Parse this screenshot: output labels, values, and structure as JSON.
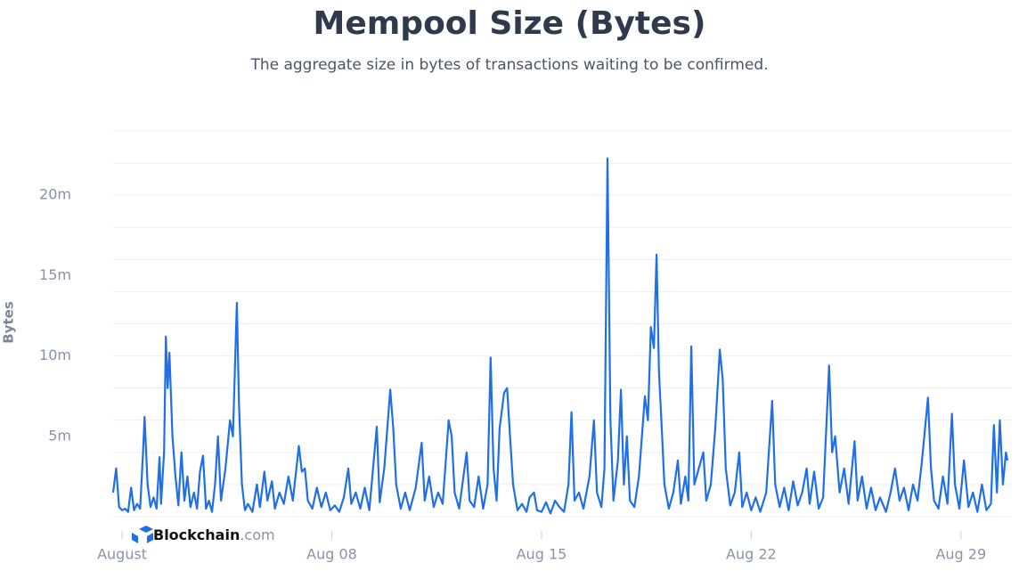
{
  "chart_data": {
    "type": "line",
    "title": "Mempool Size (Bytes)",
    "subtitle": "The aggregate size in bytes of transactions waiting to be confirmed.",
    "y_label": "Bytes",
    "watermark": {
      "name": "Blockchain",
      "suffix": ".com"
    },
    "color": "#1f6fe8",
    "grid": true,
    "xlim": [
      0.7,
      30.7
    ],
    "xticks": [
      {
        "value": 1,
        "label": "August"
      },
      {
        "value": 8,
        "label": "Aug 08"
      },
      {
        "value": 15,
        "label": "Aug 15"
      },
      {
        "value": 22,
        "label": "Aug 22"
      },
      {
        "value": 29,
        "label": "Aug 29"
      }
    ],
    "ylim": [
      0,
      24000000
    ],
    "yticks": [
      {
        "value": 5000000,
        "label": "5m"
      },
      {
        "value": 10000000,
        "label": "10m"
      },
      {
        "value": 15000000,
        "label": "15m"
      },
      {
        "value": 20000000,
        "label": "20m"
      }
    ],
    "ygrid": [
      0,
      2000000,
      4000000,
      6000000,
      8000000,
      10000000,
      12000000,
      14000000,
      16000000,
      18000000,
      20000000,
      22000000,
      24000000
    ],
    "x": [
      0.7,
      0.8,
      0.9,
      1.0,
      1.1,
      1.2,
      1.3,
      1.4,
      1.5,
      1.6,
      1.7,
      1.75,
      1.85,
      1.95,
      2.05,
      2.15,
      2.25,
      2.3,
      2.4,
      2.46,
      2.52,
      2.58,
      2.68,
      2.78,
      2.88,
      2.98,
      3.08,
      3.18,
      3.28,
      3.4,
      3.5,
      3.6,
      3.7,
      3.8,
      3.9,
      4.0,
      4.1,
      4.2,
      4.3,
      4.45,
      4.6,
      4.7,
      4.83,
      4.9,
      5.0,
      5.1,
      5.2,
      5.35,
      5.5,
      5.6,
      5.75,
      5.85,
      6.0,
      6.1,
      6.25,
      6.4,
      6.55,
      6.7,
      6.9,
      7.0,
      7.1,
      7.2,
      7.35,
      7.5,
      7.65,
      7.8,
      7.95,
      8.1,
      8.25,
      8.4,
      8.55,
      8.65,
      8.8,
      8.95,
      9.1,
      9.25,
      9.5,
      9.6,
      9.75,
      9.95,
      10.05,
      10.15,
      10.3,
      10.45,
      10.6,
      10.8,
      11.0,
      11.1,
      11.25,
      11.4,
      11.55,
      11.7,
      11.9,
      12.0,
      12.1,
      12.25,
      12.5,
      12.6,
      12.75,
      12.9,
      13.05,
      13.2,
      13.3,
      13.4,
      13.5,
      13.6,
      13.75,
      13.85,
      13.95,
      14.05,
      14.2,
      14.35,
      14.5,
      14.6,
      14.75,
      14.85,
      15.0,
      15.15,
      15.3,
      15.45,
      15.6,
      15.75,
      15.9,
      16.0,
      16.1,
      16.25,
      16.4,
      16.6,
      16.75,
      16.85,
      17.0,
      17.1,
      17.2,
      17.3,
      17.4,
      17.55,
      17.65,
      17.75,
      17.85,
      17.95,
      18.1,
      18.25,
      18.45,
      18.55,
      18.65,
      18.75,
      18.84,
      18.92,
      19.0,
      19.1,
      19.25,
      19.4,
      19.55,
      19.65,
      19.8,
      19.9,
      20.0,
      20.1,
      20.25,
      20.4,
      20.5,
      20.65,
      20.8,
      20.95,
      21.05,
      21.15,
      21.3,
      21.45,
      21.6,
      21.7,
      21.85,
      22.0,
      22.15,
      22.3,
      22.5,
      22.7,
      22.8,
      22.95,
      23.1,
      23.25,
      23.4,
      23.55,
      23.7,
      23.85,
      23.95,
      24.1,
      24.25,
      24.4,
      24.6,
      24.7,
      24.8,
      24.95,
      25.1,
      25.25,
      25.45,
      25.55,
      25.7,
      25.85,
      26.0,
      26.15,
      26.3,
      26.5,
      26.65,
      26.8,
      26.95,
      27.1,
      27.25,
      27.4,
      27.55,
      27.7,
      27.9,
      28.0,
      28.1,
      28.25,
      28.4,
      28.55,
      28.7,
      28.8,
      28.95,
      29.1,
      29.25,
      29.4,
      29.55,
      29.7,
      29.85,
      30.0,
      30.1,
      30.2,
      30.3,
      30.4,
      30.5,
      30.55
    ],
    "values": [
      1500000.0,
      3000000.0,
      600000.0,
      400000.0,
      500000.0,
      300000.0,
      1800000.0,
      400000.0,
      800000.0,
      500000.0,
      4000000.0,
      6200000.0,
      2000000.0,
      600000.0,
      1200000.0,
      500000.0,
      3700000.0,
      800000.0,
      4000000.0,
      11200000.0,
      8000000.0,
      10200000.0,
      5000000.0,
      2500000.0,
      700000.0,
      4000000.0,
      1000000.0,
      2500000.0,
      600000.0,
      1500000.0,
      500000.0,
      2800000.0,
      3800000.0,
      500000.0,
      1000000.0,
      300000.0,
      2000000.0,
      5000000.0,
      1000000.0,
      3000000.0,
      6000000.0,
      5000000.0,
      13300000.0,
      7000000.0,
      2000000.0,
      400000.0,
      800000.0,
      300000.0,
      2000000.0,
      600000.0,
      2800000.0,
      1000000.0,
      2200000.0,
      500000.0,
      1500000.0,
      800000.0,
      2500000.0,
      1000000.0,
      4400000.0,
      2800000.0,
      3000000.0,
      1000000.0,
      500000.0,
      1800000.0,
      600000.0,
      1500000.0,
      400000.0,
      700000.0,
      300000.0,
      1200000.0,
      3000000.0,
      800000.0,
      1500000.0,
      500000.0,
      1800000.0,
      400000.0,
      5600000.0,
      900000.0,
      3000000.0,
      7900000.0,
      5500000.0,
      2000000.0,
      500000.0,
      1500000.0,
      400000.0,
      1800000.0,
      4600000.0,
      1000000.0,
      2500000.0,
      600000.0,
      1500000.0,
      800000.0,
      6000000.0,
      5000000.0,
      1500000.0,
      500000.0,
      4000000.0,
      1000000.0,
      600000.0,
      2500000.0,
      500000.0,
      2000000.0,
      9900000.0,
      3000000.0,
      1000000.0,
      5500000.0,
      7700000.0,
      8000000.0,
      5000000.0,
      2000000.0,
      400000.0,
      800000.0,
      300000.0,
      1200000.0,
      1500000.0,
      400000.0,
      300000.0,
      900000.0,
      200000.0,
      1000000.0,
      600000.0,
      300000.0,
      2000000.0,
      6500000.0,
      1000000.0,
      1500000.0,
      500000.0,
      2500000.0,
      6000000.0,
      1500000.0,
      600000.0,
      3000000.0,
      22300000.0,
      6000000.0,
      1000000.0,
      3500000.0,
      7900000.0,
      2000000.0,
      5000000.0,
      1000000.0,
      600000.0,
      2500000.0,
      7500000.0,
      6000000.0,
      11800000.0,
      10500000.0,
      16300000.0,
      9000000.0,
      6000000.0,
      2000000.0,
      500000.0,
      1500000.0,
      3500000.0,
      800000.0,
      2500000.0,
      1000000.0,
      10600000.0,
      2000000.0,
      3000000.0,
      4000000.0,
      1000000.0,
      2000000.0,
      5500000.0,
      10400000.0,
      8500000.0,
      3000000.0,
      700000.0,
      1500000.0,
      4000000.0,
      600000.0,
      1500000.0,
      400000.0,
      1200000.0,
      300000.0,
      1500000.0,
      7200000.0,
      2000000.0,
      600000.0,
      1800000.0,
      400000.0,
      2200000.0,
      700000.0,
      1500000.0,
      3000000.0,
      800000.0,
      2800000.0,
      500000.0,
      1200000.0,
      9400000.0,
      4000000.0,
      5000000.0,
      1500000.0,
      3000000.0,
      800000.0,
      4700000.0,
      1000000.0,
      2500000.0,
      500000.0,
      1800000.0,
      400000.0,
      1200000.0,
      300000.0,
      1500000.0,
      3000000.0,
      1000000.0,
      1800000.0,
      400000.0,
      2000000.0,
      1000000.0,
      3500000.0,
      7400000.0,
      3000000.0,
      1000000.0,
      500000.0,
      2500000.0,
      800000.0,
      6400000.0,
      2000000.0,
      500000.0,
      3500000.0,
      600000.0,
      1500000.0,
      300000.0,
      2000000.0,
      400000.0,
      800000.0,
      5700000.0,
      1500000.0,
      6000000.0,
      2000000.0,
      4000000.0,
      3500000.0
    ]
  }
}
